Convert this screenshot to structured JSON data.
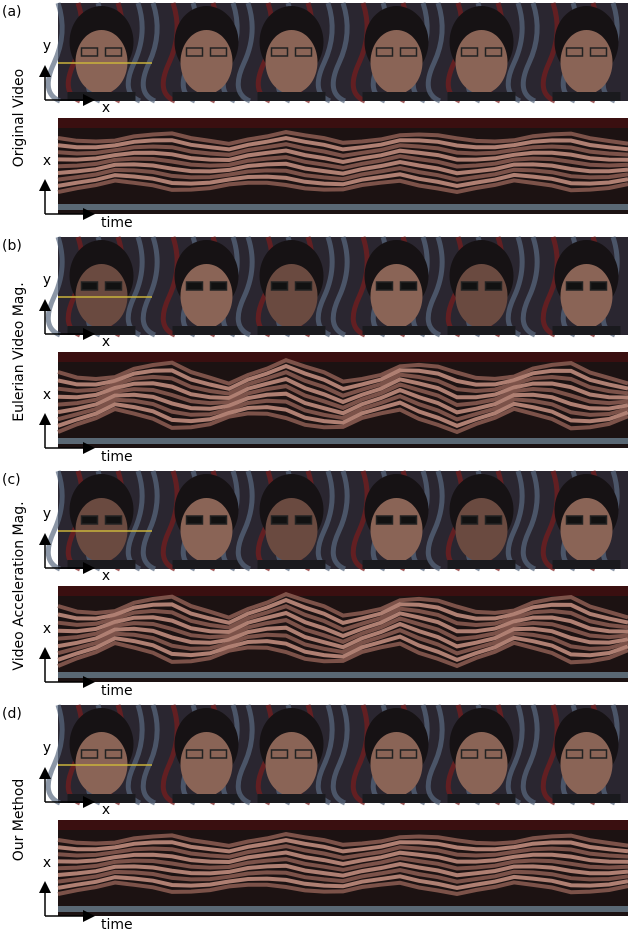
{
  "panels": [
    {
      "label": "(a)",
      "title": "Original Video",
      "frame_y_axis": "y",
      "frame_x_axis": "x",
      "slice_y_axis": "x",
      "slice_x_axis": "time"
    },
    {
      "label": "(b)",
      "title": "Eulerian Video Mag.",
      "frame_y_axis": "y",
      "frame_x_axis": "x",
      "slice_y_axis": "x",
      "slice_x_axis": "time"
    },
    {
      "label": "(c)",
      "title": "Video Acceleration Mag.",
      "frame_y_axis": "y",
      "frame_x_axis": "x",
      "slice_y_axis": "x",
      "slice_x_axis": "time"
    },
    {
      "label": "(d)",
      "title": "Our Method",
      "frame_y_axis": "y",
      "frame_x_axis": "x",
      "slice_y_axis": "x",
      "slice_x_axis": "time"
    }
  ]
}
